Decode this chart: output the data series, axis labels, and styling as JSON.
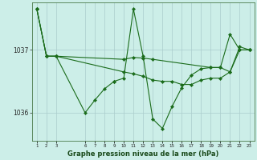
{
  "background_color": "#cceee8",
  "grid_color": "#aacccc",
  "line_color": "#1a6b1a",
  "xlabel": "Graphe pression niveau de la mer (hPa)",
  "yticks": [
    1036,
    1037
  ],
  "xticks": [
    1,
    2,
    3,
    6,
    7,
    8,
    9,
    10,
    11,
    12,
    13,
    14,
    15,
    16,
    17,
    18,
    19,
    20,
    21,
    22,
    23
  ],
  "xlim": [
    0.5,
    23.5
  ],
  "ylim": [
    1035.55,
    1037.75
  ],
  "series": [
    {
      "x": [
        1,
        2,
        3,
        6,
        7,
        8,
        9
      ],
      "y": [
        1037.65,
        1036.9,
        1036.9,
        1036.0,
        1036.2,
        1036.38,
        1036.5
      ]
    },
    {
      "x": [
        9,
        10,
        11,
        12,
        13,
        14,
        15,
        16,
        17,
        18,
        19,
        20,
        21,
        22,
        23
      ],
      "y": [
        1036.5,
        1036.55,
        1037.65,
        1036.9,
        1035.9,
        1035.75,
        1036.1,
        1036.4,
        1036.6,
        1036.7,
        1036.72,
        1036.72,
        1037.25,
        1037.0,
        1037.0
      ]
    },
    {
      "x": [
        1,
        2,
        3,
        10,
        11,
        12,
        13,
        19,
        20,
        21,
        22,
        23
      ],
      "y": [
        1037.65,
        1036.9,
        1036.9,
        1036.85,
        1036.88,
        1036.87,
        1036.85,
        1036.72,
        1036.72,
        1036.65,
        1037.0,
        1037.0
      ]
    },
    {
      "x": [
        1,
        2,
        3,
        10,
        11,
        12,
        13,
        14,
        15,
        16,
        17,
        18,
        19,
        20,
        21,
        22,
        23
      ],
      "y": [
        1037.65,
        1036.9,
        1036.9,
        1036.65,
        1036.62,
        1036.58,
        1036.52,
        1036.5,
        1036.5,
        1036.45,
        1036.45,
        1036.52,
        1036.55,
        1036.55,
        1036.65,
        1037.05,
        1037.0
      ]
    }
  ]
}
